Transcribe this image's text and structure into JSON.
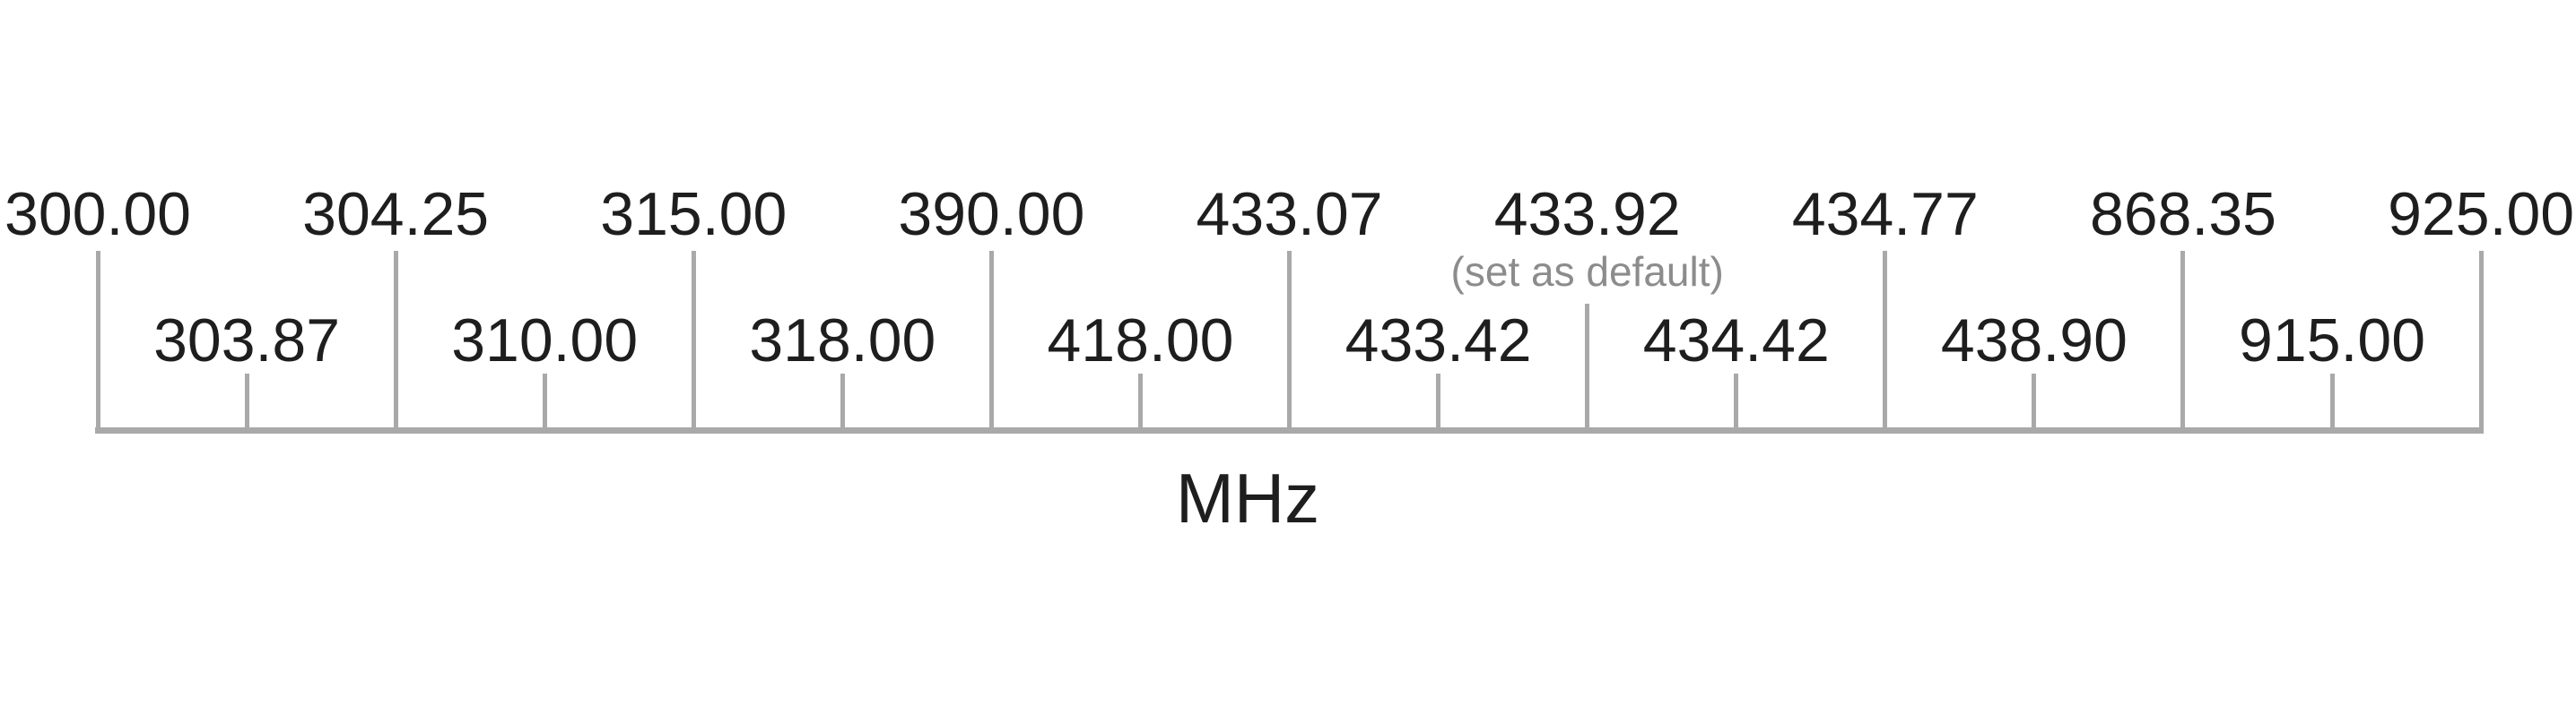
{
  "chart_data": {
    "type": "axis-scale",
    "title": "",
    "unit_label": "MHz",
    "default_annotation": "(set as default)",
    "frequencies_mhz": [
      300.0,
      303.87,
      304.25,
      310.0,
      315.0,
      318.0,
      390.0,
      418.0,
      433.07,
      433.42,
      433.92,
      434.42,
      434.77,
      438.9,
      868.35,
      915.0,
      925.0
    ],
    "default_frequency_mhz": 433.92,
    "layout_hints": {
      "tick_spacing": "even (categorical, not proportional to frequency)",
      "label_rows": "alternating top (long tick) / bottom (short tick)",
      "axis_title_position": "bottom center"
    },
    "ticks": [
      {
        "label": "300.00",
        "row": "top"
      },
      {
        "label": "303.87",
        "row": "bottom"
      },
      {
        "label": "304.25",
        "row": "top"
      },
      {
        "label": "310.00",
        "row": "bottom"
      },
      {
        "label": "315.00",
        "row": "top"
      },
      {
        "label": "318.00",
        "row": "bottom"
      },
      {
        "label": "390.00",
        "row": "top"
      },
      {
        "label": "418.00",
        "row": "bottom"
      },
      {
        "label": "433.07",
        "row": "top"
      },
      {
        "label": "433.42",
        "row": "bottom"
      },
      {
        "label": "433.92",
        "row": "top",
        "is_default": true
      },
      {
        "label": "434.42",
        "row": "bottom"
      },
      {
        "label": "434.77",
        "row": "top"
      },
      {
        "label": "438.90",
        "row": "bottom"
      },
      {
        "label": "868.35",
        "row": "top"
      },
      {
        "label": "915.00",
        "row": "bottom"
      },
      {
        "label": "925.00",
        "row": "top"
      }
    ],
    "colors": {
      "background": "#ffffff",
      "label_text": "#1e1e1e",
      "axis": "#a9a9a9",
      "annotation": "#8c8c8c"
    }
  }
}
